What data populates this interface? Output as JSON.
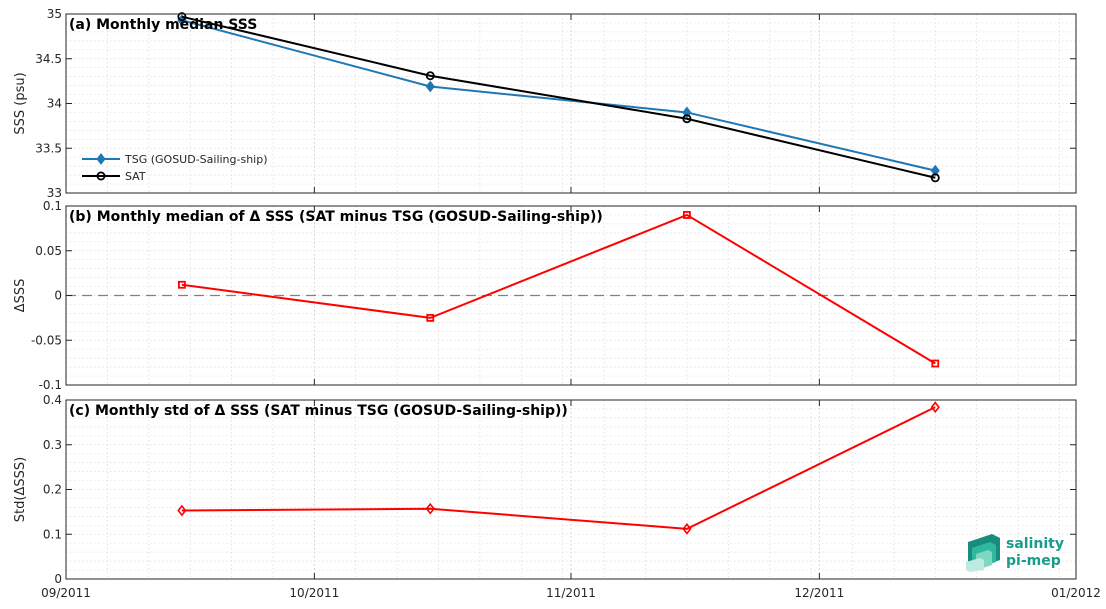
{
  "chart_data": [
    {
      "type": "line",
      "title": "(a) Monthly median SSS",
      "ylabel": "SSS (psu)",
      "ylim": [
        33,
        35
      ],
      "yticks": [
        "33",
        "33.5",
        "34",
        "34.5",
        "35"
      ],
      "grid": true,
      "legend_position": "bottom-left",
      "series": [
        {
          "name": "TSG (GOSUD-Sailing-ship)",
          "color": "#1f77b4",
          "marker": "diamond",
          "x": [
            "2011-09-15",
            "2011-10-15",
            "2011-11-15",
            "2011-12-15"
          ],
          "values": [
            34.93,
            34.19,
            33.9,
            33.25
          ]
        },
        {
          "name": "SAT",
          "color": "#000000",
          "marker": "circle",
          "x": [
            "2011-09-15",
            "2011-10-15",
            "2011-11-15",
            "2011-12-15"
          ],
          "values": [
            34.97,
            34.31,
            33.83,
            33.17
          ]
        }
      ]
    },
    {
      "type": "line",
      "title": "(b) Monthly median of Δ SSS (SAT minus TSG (GOSUD-Sailing-ship))",
      "ylabel": "ΔSSS",
      "ylim": [
        -0.1,
        0.1
      ],
      "yticks": [
        "-0.1",
        "-0.05",
        "0",
        "0.05",
        "0.1"
      ],
      "grid": true,
      "reference_line": 0,
      "series": [
        {
          "color": "#ff0000",
          "marker": "square",
          "x": [
            "2011-09-15",
            "2011-10-15",
            "2011-11-15",
            "2011-12-15"
          ],
          "values": [
            0.012,
            -0.025,
            0.09,
            -0.076
          ]
        }
      ]
    },
    {
      "type": "line",
      "title": "(c) Monthly std of Δ SSS (SAT minus TSG (GOSUD-Sailing-ship))",
      "ylabel": "Std(ΔSSS)",
      "ylim": [
        0,
        0.4
      ],
      "yticks": [
        "0",
        "0.1",
        "0.2",
        "0.3",
        "0.4"
      ],
      "grid": true,
      "series": [
        {
          "color": "#ff0000",
          "marker": "diamond",
          "x": [
            "2011-09-15",
            "2011-10-15",
            "2011-11-15",
            "2011-12-15"
          ],
          "values": [
            0.153,
            0.157,
            0.112,
            0.384
          ]
        }
      ]
    }
  ],
  "x_axis": {
    "range": [
      "2011-09-01",
      "2012-01-01"
    ],
    "ticks": [
      {
        "date": "2011-09-01",
        "label": "09/2011"
      },
      {
        "date": "2011-10-01",
        "label": "10/2011"
      },
      {
        "date": "2011-11-01",
        "label": "11/2011"
      },
      {
        "date": "2011-12-01",
        "label": "12/2011"
      },
      {
        "date": "2012-01-01",
        "label": "01/2012"
      }
    ]
  },
  "logo": {
    "line1": "salinity",
    "line2": "pi-mep"
  }
}
